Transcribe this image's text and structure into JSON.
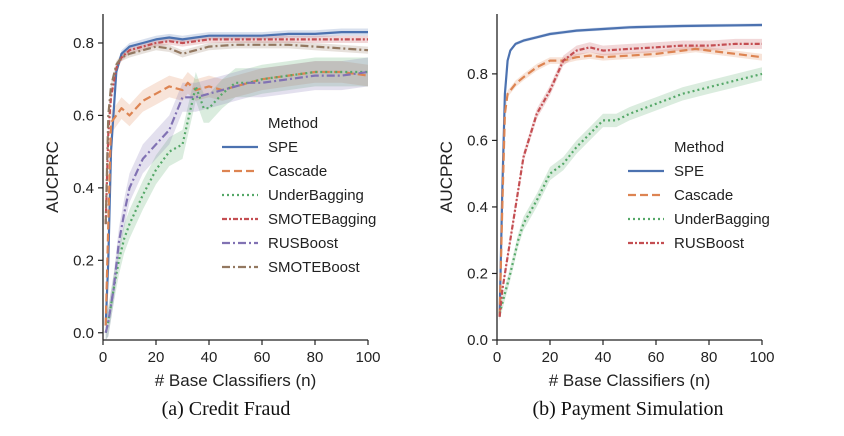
{
  "colors": {
    "SPE": "#4c72b0",
    "Cascade": "#dd8452",
    "UnderBagging": "#55a868",
    "SMOTEBagging": "#c44e52",
    "RUSBoost": "#8172b3",
    "SMOTEBoost": "#937860",
    "RUSBoost_b": "#c44e52"
  },
  "chart_data": [
    {
      "type": "line",
      "caption": "(a) Credit Fraud",
      "xlabel": "# Base Classifiers (n)",
      "ylabel": "AUCPRC",
      "xlim": [
        0,
        100
      ],
      "ylim": [
        -0.02,
        0.88
      ],
      "xticks": [
        "0",
        "20",
        "40",
        "60",
        "80",
        "100"
      ],
      "yticks": [
        "0.0",
        "0.2",
        "0.4",
        "0.6",
        "0.8"
      ],
      "legend": {
        "title": "Method",
        "placement": "center-right"
      },
      "series": [
        {
          "name": "SPE",
          "style": "solid",
          "color_key": "SPE",
          "x": [
            1,
            2,
            3,
            5,
            7,
            10,
            15,
            20,
            25,
            30,
            35,
            40,
            50,
            60,
            70,
            80,
            90,
            100
          ],
          "y": [
            0.02,
            0.2,
            0.5,
            0.72,
            0.77,
            0.79,
            0.8,
            0.81,
            0.815,
            0.81,
            0.815,
            0.82,
            0.82,
            0.82,
            0.825,
            0.825,
            0.83,
            0.83
          ],
          "band": 0.01
        },
        {
          "name": "Cascade",
          "style": "dashed",
          "color_key": "Cascade",
          "x": [
            1,
            2,
            3,
            5,
            7,
            10,
            15,
            20,
            25,
            30,
            32,
            35,
            40,
            45,
            50,
            55,
            60,
            70,
            80,
            90,
            100
          ],
          "y": [
            0.02,
            0.3,
            0.58,
            0.6,
            0.62,
            0.6,
            0.64,
            0.66,
            0.68,
            0.67,
            0.69,
            0.67,
            0.68,
            0.67,
            0.68,
            0.69,
            0.7,
            0.71,
            0.72,
            0.72,
            0.71
          ],
          "band": 0.03
        },
        {
          "name": "UnderBagging",
          "style": "dotted",
          "color_key": "UnderBagging",
          "x": [
            1,
            2,
            4,
            6,
            8,
            10,
            15,
            20,
            25,
            30,
            35,
            38,
            40,
            45,
            50,
            55,
            60,
            70,
            80,
            90,
            100
          ],
          "y": [
            0.0,
            0.03,
            0.12,
            0.2,
            0.26,
            0.3,
            0.38,
            0.45,
            0.5,
            0.52,
            0.68,
            0.62,
            0.62,
            0.66,
            0.69,
            0.69,
            0.7,
            0.71,
            0.72,
            0.72,
            0.72
          ],
          "band": 0.04
        },
        {
          "name": "SMOTEBagging",
          "style": "dashdot-short",
          "color_key": "SMOTEBagging",
          "x": [
            1,
            2,
            3,
            5,
            7,
            10,
            15,
            20,
            25,
            30,
            35,
            40,
            50,
            60,
            70,
            80,
            90,
            100
          ],
          "y": [
            0.3,
            0.55,
            0.65,
            0.73,
            0.76,
            0.78,
            0.79,
            0.8,
            0.805,
            0.8,
            0.805,
            0.81,
            0.81,
            0.81,
            0.81,
            0.81,
            0.81,
            0.81
          ],
          "band": 0.01
        },
        {
          "name": "RUSBoost",
          "style": "dashdot",
          "color_key": "RUSBoost",
          "x": [
            1,
            2,
            4,
            6,
            8,
            10,
            15,
            20,
            25,
            30,
            35,
            40,
            45,
            50,
            55,
            60,
            70,
            80,
            90,
            100
          ],
          "y": [
            0.0,
            0.03,
            0.12,
            0.25,
            0.33,
            0.4,
            0.48,
            0.52,
            0.56,
            0.65,
            0.65,
            0.66,
            0.67,
            0.68,
            0.69,
            0.69,
            0.7,
            0.71,
            0.71,
            0.72
          ],
          "band": 0.04
        },
        {
          "name": "SMOTEBoost",
          "style": "dashdot",
          "color_key": "SMOTEBoost",
          "x": [
            1,
            2,
            3,
            5,
            7,
            10,
            15,
            20,
            25,
            30,
            35,
            40,
            50,
            60,
            70,
            80,
            90,
            100
          ],
          "y": [
            0.3,
            0.6,
            0.68,
            0.74,
            0.76,
            0.77,
            0.78,
            0.79,
            0.785,
            0.77,
            0.78,
            0.79,
            0.795,
            0.795,
            0.795,
            0.79,
            0.785,
            0.78
          ],
          "band": 0.01
        }
      ]
    },
    {
      "type": "line",
      "caption": "(b) Payment Simulation",
      "xlabel": "# Base Classifiers (n)",
      "ylabel": "AUCPRC",
      "xlim": [
        0,
        100
      ],
      "ylim": [
        0.0,
        0.98
      ],
      "xticks": [
        "0",
        "20",
        "40",
        "60",
        "80",
        "100"
      ],
      "yticks": [
        "0.0",
        "0.2",
        "0.4",
        "0.6",
        "0.8"
      ],
      "legend": {
        "title": "Method",
        "placement": "center-right"
      },
      "series": [
        {
          "name": "SPE",
          "style": "solid",
          "color_key": "SPE",
          "x": [
            1,
            2,
            3,
            4,
            5,
            7,
            10,
            15,
            20,
            25,
            30,
            40,
            50,
            60,
            70,
            80,
            90,
            100
          ],
          "y": [
            0.07,
            0.45,
            0.74,
            0.84,
            0.87,
            0.89,
            0.9,
            0.91,
            0.92,
            0.925,
            0.93,
            0.935,
            0.94,
            0.942,
            0.944,
            0.945,
            0.946,
            0.947
          ],
          "band": 0.005
        },
        {
          "name": "Cascade",
          "style": "dashed",
          "color_key": "Cascade",
          "x": [
            1,
            2,
            3,
            4,
            5,
            7,
            10,
            15,
            20,
            25,
            30,
            35,
            40,
            50,
            60,
            70,
            75,
            80,
            90,
            100
          ],
          "y": [
            0.07,
            0.4,
            0.68,
            0.74,
            0.75,
            0.77,
            0.79,
            0.82,
            0.84,
            0.84,
            0.85,
            0.855,
            0.85,
            0.855,
            0.86,
            0.87,
            0.875,
            0.87,
            0.86,
            0.85
          ],
          "band": 0.01
        },
        {
          "name": "UnderBagging",
          "style": "dotted",
          "color_key": "UnderBagging",
          "x": [
            1,
            3,
            5,
            8,
            10,
            15,
            20,
            25,
            30,
            35,
            40,
            45,
            50,
            60,
            70,
            80,
            90,
            100
          ],
          "y": [
            0.08,
            0.14,
            0.2,
            0.3,
            0.35,
            0.42,
            0.5,
            0.53,
            0.58,
            0.62,
            0.66,
            0.66,
            0.68,
            0.71,
            0.74,
            0.76,
            0.78,
            0.8
          ],
          "band": 0.02
        },
        {
          "name": "RUSBoost",
          "style": "dashdot-short",
          "color_key": "RUSBoost_b",
          "x": [
            1,
            2,
            4,
            6,
            8,
            10,
            15,
            20,
            25,
            30,
            35,
            40,
            50,
            60,
            70,
            80,
            90,
            100
          ],
          "y": [
            0.07,
            0.15,
            0.25,
            0.35,
            0.45,
            0.55,
            0.68,
            0.75,
            0.84,
            0.87,
            0.88,
            0.87,
            0.875,
            0.88,
            0.885,
            0.885,
            0.89,
            0.89
          ],
          "band": 0.015
        }
      ]
    }
  ]
}
